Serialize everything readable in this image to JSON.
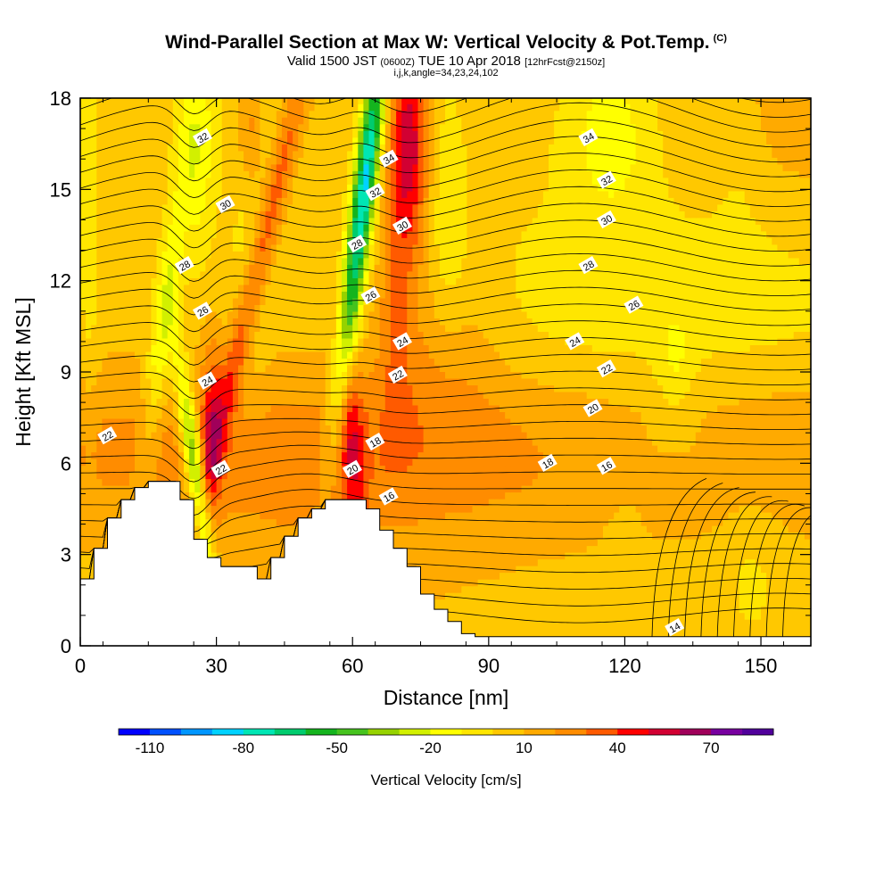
{
  "titles": {
    "main": "Wind-Parallel Section at Max W: Vertical Velocity & Pot.Temp.",
    "copyright": "(C)",
    "valid_pre": "Valid 1500 JST",
    "valid_utc": "(0600Z)",
    "valid_date": "TUE 10 Apr 2018",
    "forecast": "[12hrFcst@2150z]",
    "indices": "i,j,k,angle=34,23,24,102"
  },
  "chart_data": {
    "type": "heatmap",
    "xlabel": "Distance [nm]",
    "ylabel": "Height [Kft MSL]",
    "xlim": [
      0,
      161
    ],
    "ylim": [
      0,
      18
    ],
    "xticks": [
      0,
      30,
      60,
      90,
      120,
      150
    ],
    "yticks": [
      0,
      3,
      6,
      9,
      12,
      15,
      18
    ],
    "grid": false,
    "colorbar": {
      "label": "Vertical Velocity [cm/s]",
      "min": -120,
      "max": 90,
      "step": 10,
      "tick_values": [
        -110,
        -80,
        -50,
        -20,
        10,
        40,
        70
      ],
      "colors": [
        "#0000ff",
        "#0050ff",
        "#0096ff",
        "#00d2ff",
        "#00e6b4",
        "#00cc6e",
        "#14b41e",
        "#46c31e",
        "#96d200",
        "#d2f000",
        "#ffff00",
        "#ffe600",
        "#ffc800",
        "#ffaa00",
        "#ff8c00",
        "#ff5a00",
        "#ff0000",
        "#d20032",
        "#a0005a",
        "#7800a0",
        "#50009b"
      ]
    },
    "terrain_kft": [
      [
        0,
        2.2
      ],
      [
        3,
        2.2
      ],
      [
        3,
        3.2
      ],
      [
        6,
        3.2
      ],
      [
        6,
        4.2
      ],
      [
        9,
        4.2
      ],
      [
        9,
        4.8
      ],
      [
        12,
        4.8
      ],
      [
        12,
        5.2
      ],
      [
        15,
        5.2
      ],
      [
        15,
        5.4
      ],
      [
        22,
        5.4
      ],
      [
        22,
        4.8
      ],
      [
        25,
        4.8
      ],
      [
        25,
        3.5
      ],
      [
        28,
        3.5
      ],
      [
        28,
        2.9
      ],
      [
        31,
        2.9
      ],
      [
        31,
        2.6
      ],
      [
        39,
        2.6
      ],
      [
        39,
        2.2
      ],
      [
        42,
        2.2
      ],
      [
        42,
        2.9
      ],
      [
        45,
        2.9
      ],
      [
        45,
        3.6
      ],
      [
        48,
        3.6
      ],
      [
        48,
        4.2
      ],
      [
        51,
        4.2
      ],
      [
        51,
        4.5
      ],
      [
        54,
        4.5
      ],
      [
        54,
        4.8
      ],
      [
        63,
        4.8
      ],
      [
        63,
        4.5
      ],
      [
        66,
        4.5
      ],
      [
        66,
        3.8
      ],
      [
        69,
        3.8
      ],
      [
        69,
        3.2
      ],
      [
        72,
        3.2
      ],
      [
        72,
        2.6
      ],
      [
        75,
        2.6
      ],
      [
        75,
        1.7
      ],
      [
        78,
        1.7
      ],
      [
        78,
        1.2
      ],
      [
        81,
        1.2
      ],
      [
        81,
        0.8
      ],
      [
        84,
        0.8
      ],
      [
        84,
        0.4
      ],
      [
        87,
        0.4
      ],
      [
        87,
        0.3
      ],
      [
        161,
        0.3
      ]
    ],
    "theta_labels": [
      {
        "x": 27,
        "y": 16.7,
        "v": "32"
      },
      {
        "x": 32,
        "y": 14.5,
        "v": "30"
      },
      {
        "x": 23,
        "y": 12.5,
        "v": "28"
      },
      {
        "x": 27,
        "y": 11.0,
        "v": "26"
      },
      {
        "x": 28,
        "y": 8.7,
        "v": "24"
      },
      {
        "x": 31,
        "y": 5.8,
        "v": "22"
      },
      {
        "x": 6,
        "y": 6.9,
        "v": "22"
      },
      {
        "x": 68,
        "y": 16.0,
        "v": "34"
      },
      {
        "x": 65,
        "y": 14.9,
        "v": "32"
      },
      {
        "x": 71,
        "y": 13.8,
        "v": "30"
      },
      {
        "x": 61,
        "y": 13.2,
        "v": "28"
      },
      {
        "x": 64,
        "y": 11.5,
        "v": "26"
      },
      {
        "x": 71,
        "y": 10.0,
        "v": "24"
      },
      {
        "x": 70,
        "y": 8.9,
        "v": "22"
      },
      {
        "x": 60,
        "y": 5.8,
        "v": "20"
      },
      {
        "x": 65,
        "y": 6.7,
        "v": "18"
      },
      {
        "x": 68,
        "y": 4.9,
        "v": "16"
      },
      {
        "x": 112,
        "y": 16.7,
        "v": "34"
      },
      {
        "x": 116,
        "y": 15.3,
        "v": "32"
      },
      {
        "x": 116,
        "y": 14.0,
        "v": "30"
      },
      {
        "x": 112,
        "y": 12.5,
        "v": "28"
      },
      {
        "x": 122,
        "y": 11.2,
        "v": "26"
      },
      {
        "x": 109,
        "y": 10.0,
        "v": "24"
      },
      {
        "x": 116,
        "y": 9.1,
        "v": "22"
      },
      {
        "x": 113,
        "y": 7.8,
        "v": "20"
      },
      {
        "x": 103,
        "y": 6.0,
        "v": "18"
      },
      {
        "x": 116,
        "y": 5.9,
        "v": "16"
      },
      {
        "x": 131,
        "y": 0.6,
        "v": "14"
      }
    ]
  }
}
